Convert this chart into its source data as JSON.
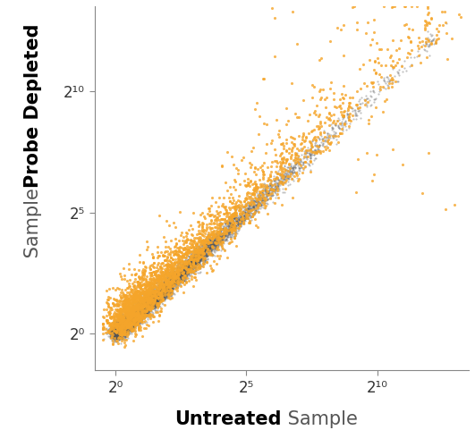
{
  "xlabel_bold": "Untreated",
  "xlabel_regular": " Sample",
  "ylabel_bold": "Probe Depleted",
  "ylabel_regular": " Sample",
  "x_ticks": [
    0,
    5,
    10
  ],
  "y_ticks": [
    0,
    5,
    10
  ],
  "xlim": [
    -0.8,
    13.5
  ],
  "ylim": [
    -1.5,
    13.5
  ],
  "orange_color": "#F5A52A",
  "gray_color": "#555555",
  "bg_color": "#ffffff",
  "n_gray": 8000,
  "n_orange": 3000,
  "seed": 7
}
